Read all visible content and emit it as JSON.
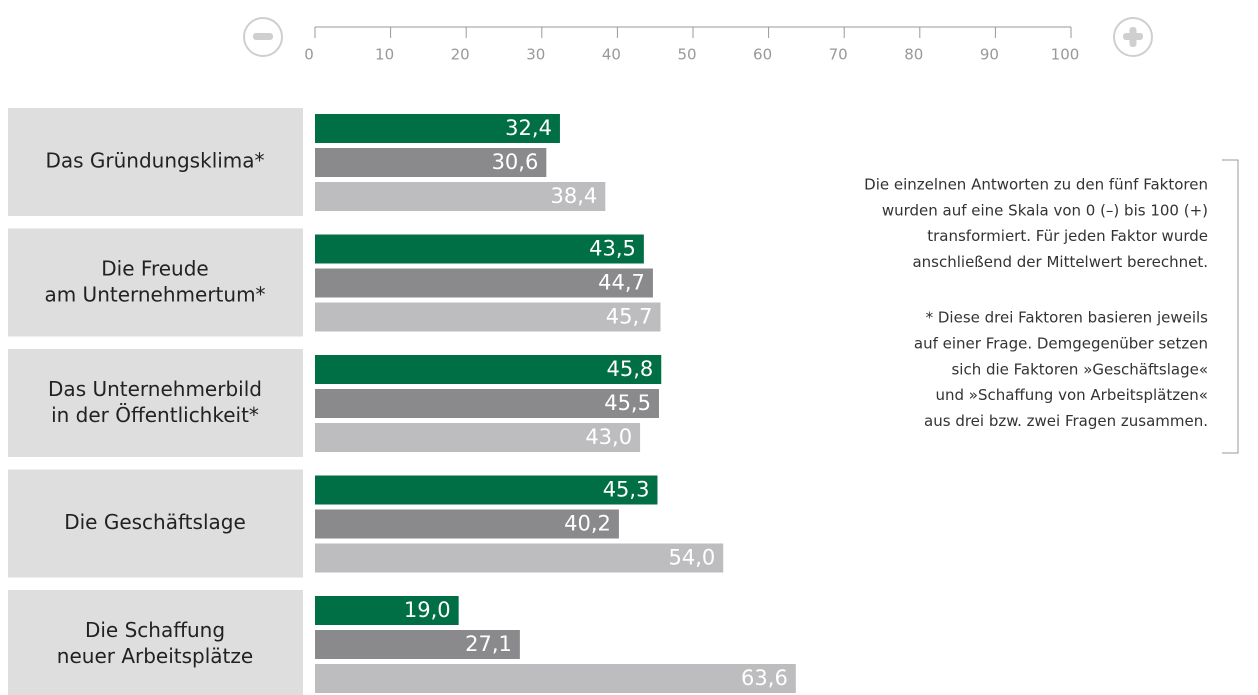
{
  "chart_data": {
    "type": "bar",
    "orientation": "horizontal",
    "categories": [
      "Das Gründungsklima*",
      "Die Freude\nam Unternehmertum*",
      "Das Unternehmerbild\nin der Öffentlichkeit*",
      "Die Geschäftslage",
      "Die Schaffung\nneuer Arbeitsplätze"
    ],
    "series": [
      {
        "color": "#006f45",
        "values": [
          32.4,
          43.5,
          45.8,
          45.3,
          19.0
        ],
        "value_labels": [
          "32,4",
          "43,5",
          "45,8",
          "45,3",
          "19,0"
        ]
      },
      {
        "color": "#8a8a8c",
        "values": [
          30.6,
          44.7,
          45.5,
          40.2,
          27.1
        ],
        "value_labels": [
          "30,6",
          "44,7",
          "45,5",
          "40,2",
          "27,1"
        ]
      },
      {
        "color": "#bdbdbf",
        "values": [
          38.4,
          45.7,
          43.0,
          54.0,
          63.6
        ],
        "value_labels": [
          "38,4",
          "45,7",
          "43,0",
          "54,0",
          "63,6"
        ]
      }
    ],
    "xlim": [
      0,
      100
    ],
    "xticks": [
      0,
      10,
      20,
      30,
      40,
      50,
      60,
      70,
      80,
      90,
      100
    ],
    "annotations": [
      [
        "Die einzelnen Antworten zu den fünf Faktoren",
        "wurden auf eine Skala von 0 (–) bis 100 (+)",
        "transformiert. Für jeden Faktor wurde",
        "anschließend der Mittelwert berechnet."
      ],
      [
        "* Diese drei Faktoren basieren jeweils",
        "auf einer Frage. Demgegenüber setzen",
        "sich die Faktoren »Geschäftslage«",
        "und »Schaffung von Arbeitsplätzen«",
        "aus drei bzw. zwei Fragen zusammen."
      ]
    ]
  }
}
